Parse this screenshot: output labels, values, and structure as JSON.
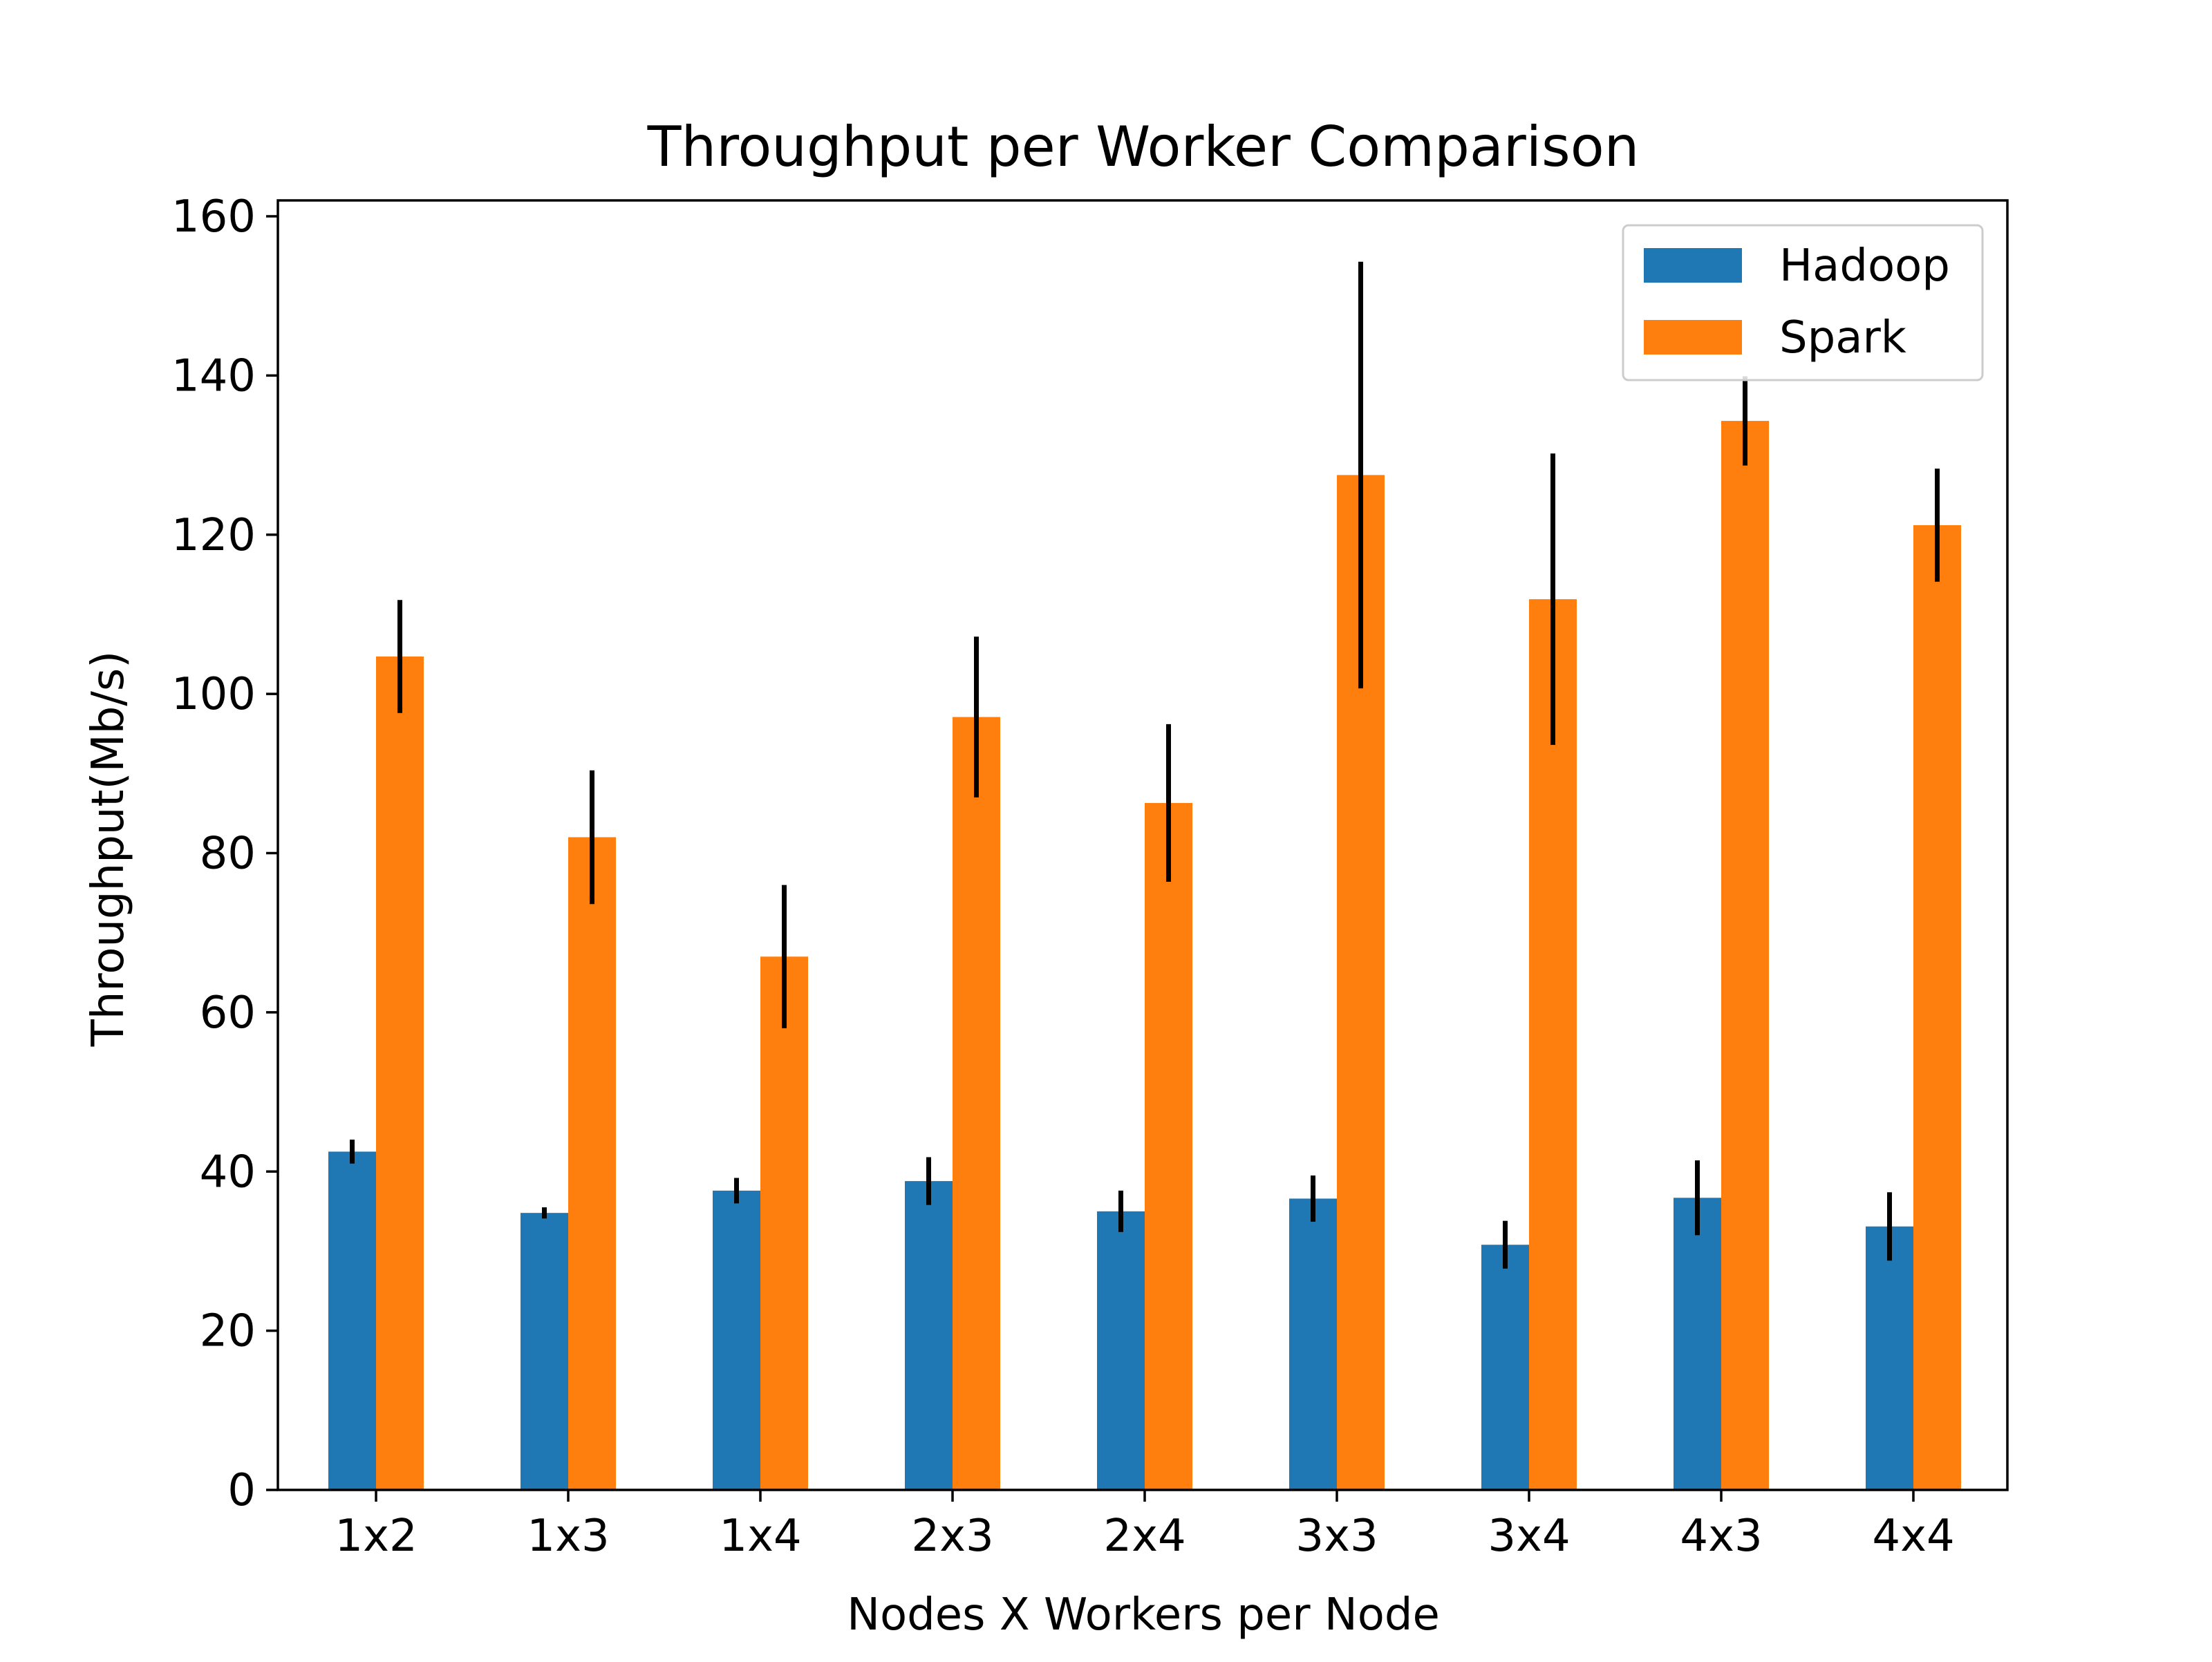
{
  "chart_data": {
    "type": "bar",
    "title": "Throughput per Worker Comparison",
    "xlabel": "Nodes X Workers per Node",
    "ylabel": "Throughput(Mb/s)",
    "ylim": [
      0,
      162
    ],
    "yticks": [
      0,
      20,
      40,
      60,
      80,
      100,
      120,
      140,
      160
    ],
    "categories": [
      "1x2",
      "1x3",
      "1x4",
      "2x3",
      "2x4",
      "3x3",
      "3x4",
      "4x3",
      "4x4"
    ],
    "series": [
      {
        "name": "Hadoop",
        "color": "#1f77b4",
        "values": [
          42.5,
          34.8,
          37.6,
          38.8,
          35.0,
          36.6,
          30.8,
          36.7,
          33.1
        ],
        "errors": [
          1.5,
          0.7,
          1.6,
          3.0,
          2.6,
          2.9,
          3.0,
          4.7,
          4.3
        ]
      },
      {
        "name": "Spark",
        "color": "#ff7f0e",
        "values": [
          104.7,
          82.0,
          67.0,
          97.1,
          86.3,
          127.5,
          111.9,
          134.3,
          121.2
        ],
        "errors": [
          7.1,
          8.4,
          9.0,
          10.1,
          9.9,
          26.8,
          18.3,
          5.6,
          7.1
        ]
      }
    ],
    "legend": {
      "position": "top-right"
    },
    "grid": false
  }
}
